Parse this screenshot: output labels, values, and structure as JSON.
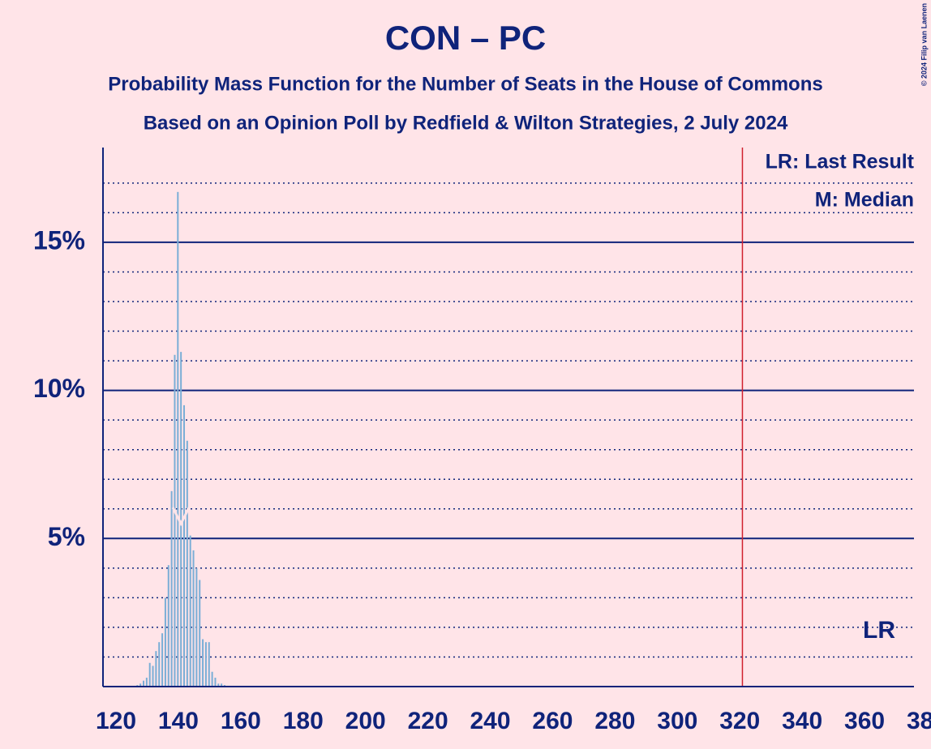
{
  "chart_data": {
    "type": "bar",
    "title": "CON – PC",
    "subtitle": "Probability Mass Function for the Number of Seats in the House of Commons",
    "subtitle2": "Based on an Opinion Poll by Redfield & Wilton Strategies, 2 July 2024",
    "copyright": "© 2024 Filip van Laenen",
    "legend_lr": "LR: Last Result",
    "legend_m": "M: Median",
    "lr_label": "LR",
    "last_result": 325,
    "median": 145,
    "x": [
      131,
      132,
      133,
      134,
      135,
      136,
      137,
      138,
      139,
      140,
      141,
      142,
      143,
      144,
      145,
      146,
      147,
      148,
      149,
      150,
      151,
      152,
      153,
      154,
      155,
      156,
      157,
      158,
      159,
      160
    ],
    "values": [
      0.05,
      0.1,
      0.2,
      0.3,
      0.8,
      0.7,
      1.2,
      1.5,
      1.8,
      3.0,
      4.1,
      6.6,
      11.2,
      16.7,
      11.3,
      9.5,
      8.3,
      5.1,
      4.6,
      4.0,
      3.6,
      1.6,
      1.5,
      1.5,
      0.5,
      0.3,
      0.1,
      0.1,
      0.05,
      0.02
    ],
    "color": "#7aaed6",
    "xlim": [
      120,
      380
    ],
    "xticks": [
      120,
      140,
      160,
      180,
      200,
      220,
      240,
      260,
      280,
      300,
      320,
      340,
      360,
      380
    ],
    "ylim": [
      0,
      18.2
    ],
    "yticks": [
      {
        "value": 5,
        "label": "5%"
      },
      {
        "value": 10,
        "label": "10%"
      },
      {
        "value": 15,
        "label": "15%"
      }
    ],
    "minor_yticks": [
      1,
      2,
      3,
      4,
      6,
      7,
      8,
      9,
      11,
      12,
      13,
      14,
      16,
      17
    ],
    "grid": true
  }
}
